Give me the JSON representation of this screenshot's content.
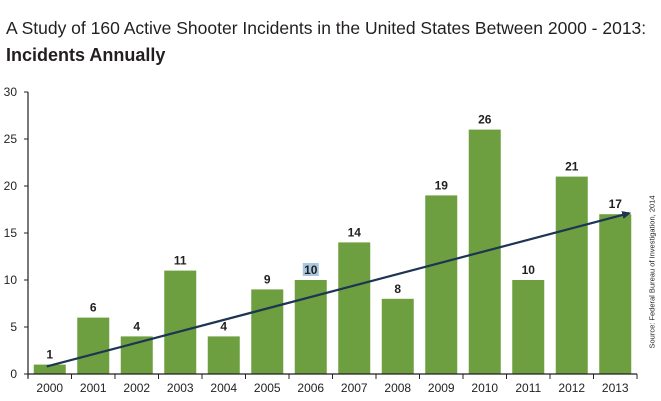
{
  "title": "A Study of 160 Active Shooter Incidents in the United States Between 2000 - 2013:",
  "subtitle": "Incidents Annually",
  "source": "Source: Federal Bureau of Investigation, 2014",
  "colors": {
    "bar": "#6d9e3f",
    "trend": "#1b3552",
    "axis": "#231f20",
    "highlight": "#a8c7e0"
  },
  "chart_data": {
    "type": "bar",
    "categories": [
      "2000",
      "2001",
      "2002",
      "2003",
      "2004",
      "2005",
      "2006",
      "2007",
      "2008",
      "2009",
      "2010",
      "2011",
      "2012",
      "2013"
    ],
    "values": [
      1,
      6,
      4,
      11,
      4,
      9,
      10,
      14,
      8,
      19,
      26,
      10,
      21,
      17
    ],
    "ylim": [
      0,
      30
    ],
    "yticks": [
      0,
      5,
      10,
      15,
      20,
      25,
      30
    ],
    "trend_line": {
      "start": [
        2000,
        0.8
      ],
      "end": [
        2013,
        17
      ]
    },
    "grid": false,
    "legend": "none"
  }
}
